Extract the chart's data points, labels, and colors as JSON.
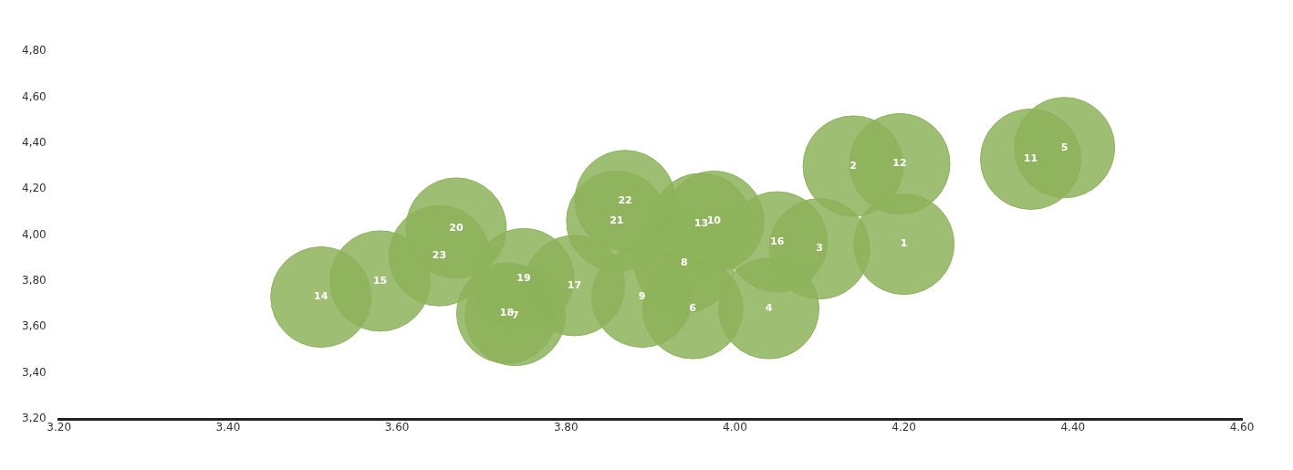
{
  "chart_data": {
    "type": "bubble",
    "x": [
      4.2,
      4.14,
      4.1,
      4.04,
      4.39,
      3.95,
      3.74,
      3.94,
      3.89,
      3.975,
      4.35,
      4.195,
      3.96,
      3.51,
      3.58,
      4.05,
      3.81,
      3.73,
      3.75,
      3.67,
      3.86,
      3.87,
      3.65
    ],
    "series": [
      {
        "color": "#8db35a",
        "values": [
          3.96,
          4.3,
          3.94,
          3.68,
          4.38,
          3.68,
          3.65,
          3.88,
          3.73,
          4.06,
          4.33,
          4.31,
          4.05,
          3.73,
          3.8,
          3.97,
          3.78,
          3.66,
          3.81,
          4.03,
          4.06,
          4.15,
          3.91
        ],
        "sizes": [
          1,
          1,
          1,
          1,
          1,
          1,
          1,
          1,
          1,
          1,
          1,
          1,
          1,
          1,
          1,
          1,
          1,
          1,
          1,
          1,
          1,
          1,
          1
        ]
      }
    ],
    "annotations": [
      {
        "text": "1",
        "x": 4.2,
        "y": 3.96
      },
      {
        "text": "2",
        "x": 4.14,
        "y": 4.3
      },
      {
        "text": "3",
        "x": 4.1,
        "y": 3.94
      },
      {
        "text": "4",
        "x": 4.04,
        "y": 3.68
      },
      {
        "text": "5",
        "x": 4.39,
        "y": 4.38
      },
      {
        "text": "6",
        "x": 3.95,
        "y": 3.68
      },
      {
        "text": "7",
        "x": 3.74,
        "y": 3.65
      },
      {
        "text": "8",
        "x": 3.94,
        "y": 3.88
      },
      {
        "text": "9",
        "x": 3.89,
        "y": 3.73
      },
      {
        "text": "10",
        "x": 3.975,
        "y": 4.06
      },
      {
        "text": "11",
        "x": 4.35,
        "y": 4.33
      },
      {
        "text": "12",
        "x": 4.195,
        "y": 4.31
      },
      {
        "text": "13",
        "x": 3.96,
        "y": 4.05
      },
      {
        "text": "14",
        "x": 3.51,
        "y": 3.73
      },
      {
        "text": "15",
        "x": 3.58,
        "y": 3.8
      },
      {
        "text": "16",
        "x": 4.05,
        "y": 3.97
      },
      {
        "text": "17",
        "x": 3.81,
        "y": 3.78
      },
      {
        "text": "18",
        "x": 3.73,
        "y": 3.66
      },
      {
        "text": "19",
        "x": 3.75,
        "y": 3.81
      },
      {
        "text": "20",
        "x": 3.67,
        "y": 4.03
      },
      {
        "text": "21",
        "x": 3.86,
        "y": 4.06
      },
      {
        "text": "22",
        "x": 3.87,
        "y": 4.15
      },
      {
        "text": "23",
        "x": 3.65,
        "y": 3.91
      }
    ],
    "xlim": [
      3.2,
      4.6
    ],
    "ylim": [
      3.2,
      4.8
    ],
    "xticks": [
      {
        "value": 3.2,
        "label": "3.20"
      },
      {
        "value": 3.4,
        "label": "3.40"
      },
      {
        "value": 3.6,
        "label": "3.60"
      },
      {
        "value": 3.8,
        "label": "3.80"
      },
      {
        "value": 4.0,
        "label": "4.00"
      },
      {
        "value": 4.2,
        "label": "4.20"
      },
      {
        "value": 4.4,
        "label": "4.40"
      },
      {
        "value": 4.6,
        "label": "4.60"
      }
    ],
    "yticks": [
      {
        "value": 3.2,
        "label": "3,20"
      },
      {
        "value": 3.4,
        "label": "3,40"
      },
      {
        "value": 3.6,
        "label": "3,60"
      },
      {
        "value": 3.8,
        "label": "3,80"
      },
      {
        "value": 4.0,
        "label": "4,00"
      },
      {
        "value": 4.2,
        "label": "4,20"
      },
      {
        "value": 4.4,
        "label": "4,40"
      },
      {
        "value": 4.6,
        "label": "4,60"
      },
      {
        "value": 4.8,
        "label": "4,80"
      }
    ],
    "grid": false,
    "legend": false,
    "marker": "circle"
  }
}
